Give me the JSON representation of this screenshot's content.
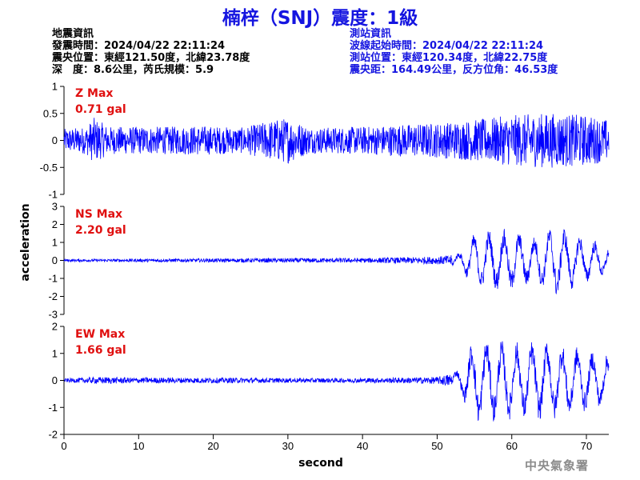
{
  "title": "楠梓（SNJ）震度：1級",
  "info_left": {
    "heading": "地震資訊",
    "origin_time": "發震時間：2024/04/22 22:11:24",
    "epicenter": "震央位置：東經121.50度，北緯23.78度",
    "depth_magnitude": "深　度：8.6公里，芮氏規模：5.9"
  },
  "info_right": {
    "heading": "測站資訊",
    "wave_start": "波線起始時間：2024/04/22 22:11:24",
    "station_location": "測站位置：東經120.34度，北緯22.75度",
    "distance_azimuth": "震央距：164.49公里，反方位角：46.53度"
  },
  "axis": {
    "ylabel": "acceleration",
    "xlabel": "second"
  },
  "agency": "中央氣象署",
  "colors": {
    "trace": "#0000ff",
    "title": "#1515e0",
    "max_label": "#e01010",
    "axis": "#000000"
  },
  "chart_data": {
    "type": "line",
    "x_range": [
      0,
      73
    ],
    "x_ticks": [
      "0",
      "10",
      "20",
      "30",
      "40",
      "50",
      "60",
      "70"
    ],
    "x_tick_values": [
      0,
      10,
      20,
      30,
      40,
      50,
      60,
      70
    ],
    "grid": false,
    "panels": [
      {
        "component": "Z",
        "max_label": "Z Max",
        "max_value": "0.71 gal",
        "ylim": [
          -1,
          1
        ],
        "y_tick_values": [
          -1,
          -0.5,
          0,
          0.5,
          1
        ],
        "y_ticks": [
          "-1",
          "-0.5",
          "0",
          "0.5",
          "1"
        ],
        "envelope": [
          [
            0,
            0.25
          ],
          [
            3,
            0.3
          ],
          [
            4,
            0.5
          ],
          [
            6,
            0.3
          ],
          [
            10,
            0.3
          ],
          [
            14,
            0.3
          ],
          [
            18,
            0.32
          ],
          [
            24,
            0.28
          ],
          [
            28,
            0.45
          ],
          [
            30,
            0.5
          ],
          [
            33,
            0.28
          ],
          [
            40,
            0.3
          ],
          [
            45,
            0.35
          ],
          [
            50,
            0.38
          ],
          [
            55,
            0.45
          ],
          [
            60,
            0.55
          ],
          [
            65,
            0.6
          ],
          [
            70,
            0.55
          ],
          [
            73,
            0.45
          ]
        ]
      },
      {
        "component": "NS",
        "max_label": "NS Max",
        "max_value": "2.20 gal",
        "ylim": [
          -3,
          3
        ],
        "y_tick_values": [
          -3,
          -2,
          -1,
          0,
          1,
          2,
          3
        ],
        "y_ticks": [
          "-3",
          "-2",
          "-1",
          "0",
          "1",
          "2",
          "3"
        ],
        "envelope": [
          [
            0,
            0.08
          ],
          [
            10,
            0.1
          ],
          [
            20,
            0.12
          ],
          [
            30,
            0.15
          ],
          [
            40,
            0.15
          ],
          [
            45,
            0.2
          ],
          [
            50,
            0.25
          ],
          [
            53,
            0.4
          ],
          [
            55,
            1.4
          ],
          [
            57,
            1.6
          ],
          [
            60,
            1.6
          ],
          [
            63,
            1.2
          ],
          [
            66,
            1.9
          ],
          [
            68,
            1.5
          ],
          [
            70,
            1.2
          ],
          [
            73,
            0.7
          ]
        ]
      },
      {
        "component": "EW",
        "max_label": "EW Max",
        "max_value": "1.66 gal",
        "ylim": [
          -2,
          2
        ],
        "y_tick_values": [
          -2,
          -1,
          0,
          1,
          2
        ],
        "y_ticks": [
          "-2",
          "-1",
          "0",
          "1",
          "2"
        ],
        "envelope": [
          [
            0,
            0.08
          ],
          [
            5,
            0.15
          ],
          [
            10,
            0.12
          ],
          [
            20,
            0.12
          ],
          [
            30,
            0.1
          ],
          [
            40,
            0.1
          ],
          [
            50,
            0.15
          ],
          [
            53,
            0.4
          ],
          [
            55,
            1.5
          ],
          [
            58,
            1.4
          ],
          [
            61,
            1.3
          ],
          [
            65,
            1.4
          ],
          [
            68,
            1.2
          ],
          [
            71,
            1.0
          ],
          [
            73,
            0.9
          ]
        ]
      }
    ]
  }
}
